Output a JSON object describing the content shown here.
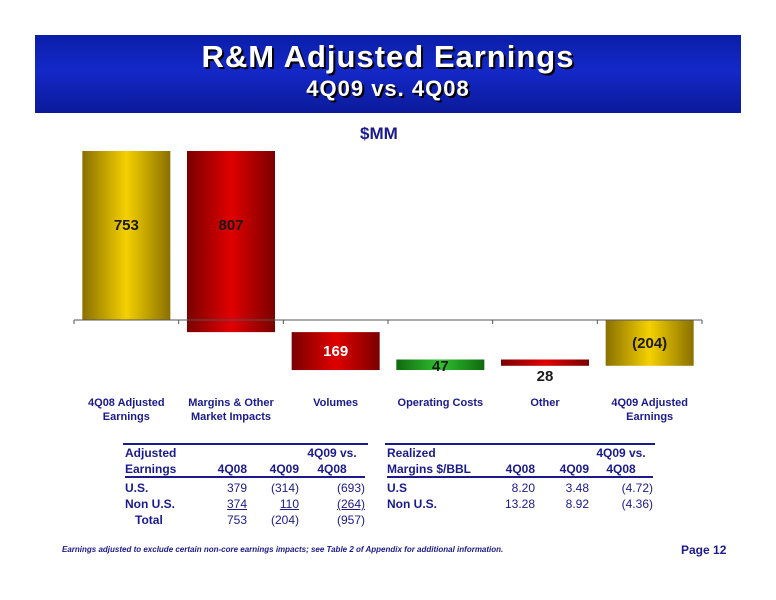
{
  "header": {
    "title": "R&M Adjusted Earnings",
    "subtitle": "4Q09 vs. 4Q08"
  },
  "chart_data": {
    "type": "bar",
    "subtype": "waterfall",
    "unit_label": "$MM",
    "categories": [
      "4Q08 Adjusted Earnings",
      "Margins & Other Market Impacts",
      "Volumes",
      "Operating Costs",
      "Other",
      "4Q09 Adjusted Earnings"
    ],
    "category_lines": [
      [
        "4Q08 Adjusted",
        "Earnings"
      ],
      [
        "Margins & Other",
        "Market Impacts"
      ],
      [
        "Volumes"
      ],
      [
        "Operating Costs"
      ],
      [
        "Other"
      ],
      [
        "4Q09 Adjusted",
        "Earnings"
      ]
    ],
    "bars": [
      {
        "start": 0,
        "end": 753,
        "label": "753",
        "color": "gold"
      },
      {
        "start": 753,
        "end": -54,
        "label": "807",
        "color": "red"
      },
      {
        "start": -54,
        "end": -223,
        "label": "169",
        "color": "red"
      },
      {
        "start": -223,
        "end": -176,
        "label": "47",
        "color": "green"
      },
      {
        "start": -176,
        "end": -204,
        "label": "28",
        "color": "red"
      },
      {
        "start": 0,
        "end": -204,
        "label": "(204)",
        "color": "gold"
      }
    ],
    "values": [
      753,
      -807,
      -169,
      47,
      -28,
      -204
    ],
    "colors": {
      "gold": "#d4b000",
      "red": "#c00000",
      "green": "#2a9a2a"
    }
  },
  "table_left": {
    "header_line1": [
      "Adjusted",
      "",
      "",
      "4Q09 vs."
    ],
    "header_line2": [
      "Earnings",
      "4Q08",
      "4Q09",
      "4Q08"
    ],
    "rows": [
      [
        "U.S.",
        "379",
        "(314)",
        "(693)"
      ],
      [
        "Non U.S.",
        "374",
        "110",
        "(264)"
      ],
      [
        "Total",
        "753",
        "(204)",
        "(957)"
      ]
    ]
  },
  "table_right": {
    "header_line1": [
      "Realized",
      "",
      "",
      "4Q09 vs."
    ],
    "header_line2": [
      "Margins $/BBL",
      "4Q08",
      "4Q09",
      "4Q08"
    ],
    "rows": [
      [
        "U.S",
        "8.20",
        "3.48",
        "(4.72)"
      ],
      [
        "Non U.S.",
        "13.28",
        "8.92",
        "(4.36)"
      ]
    ]
  },
  "footnote": "Earnings adjusted to exclude certain non-core earnings impacts; see Table 2 of Appendix for additional information.",
  "page_label": "Page 12"
}
